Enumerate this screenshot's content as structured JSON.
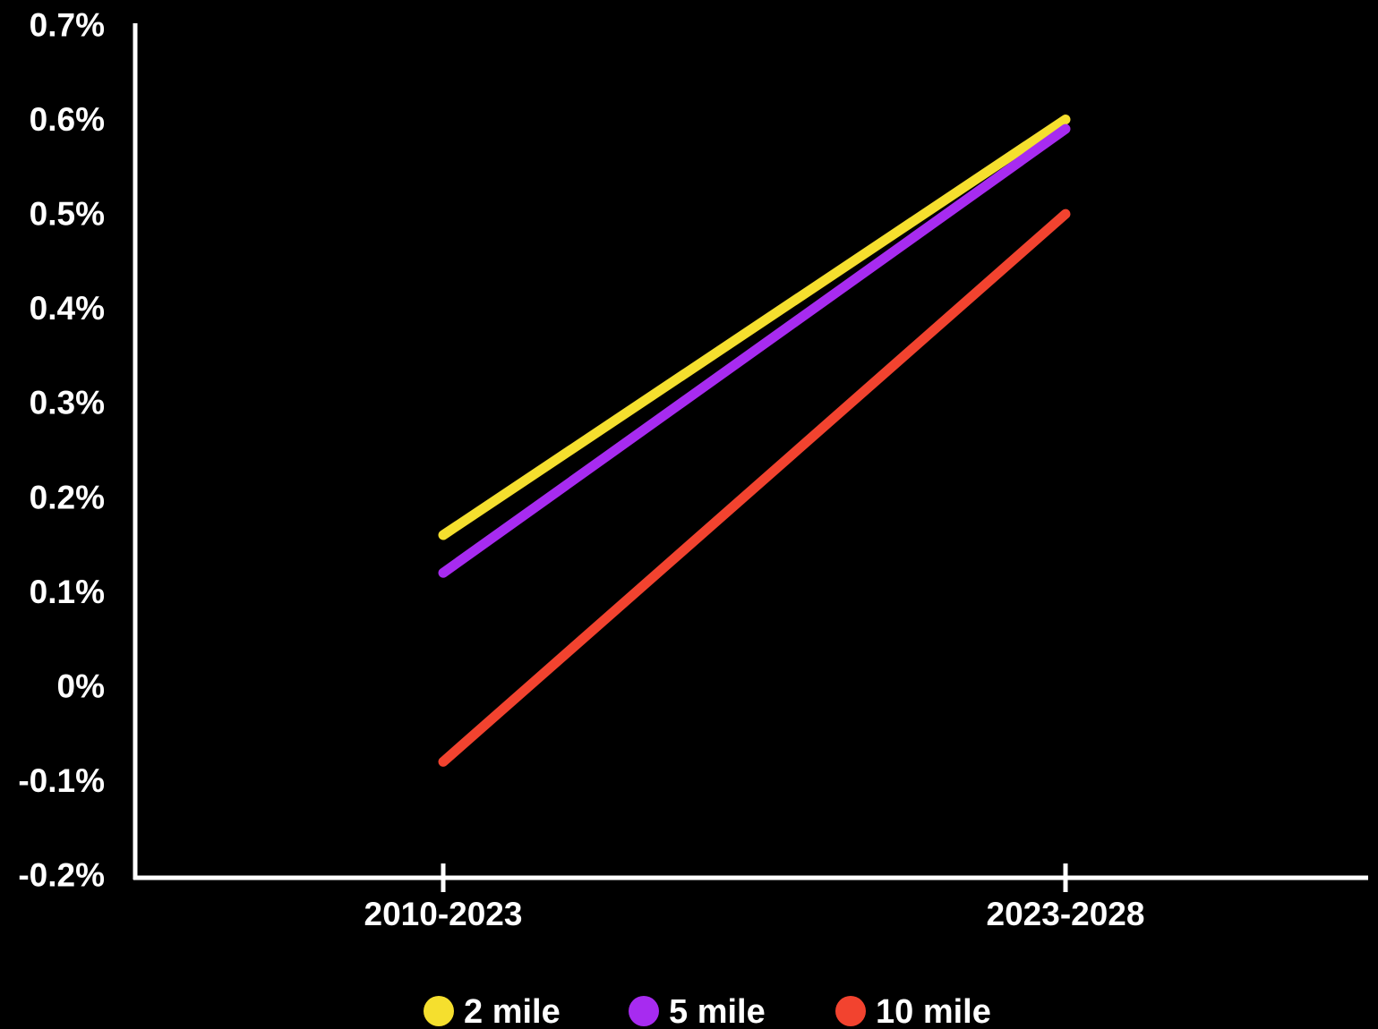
{
  "chart_data": {
    "type": "line",
    "categories": [
      "2010-2023",
      "2023-2028"
    ],
    "series": [
      {
        "name": "2 mile",
        "color": "#F5DF2E",
        "values": [
          0.16,
          0.6
        ]
      },
      {
        "name": "5 mile",
        "color": "#A72BF0",
        "values": [
          0.12,
          0.59
        ]
      },
      {
        "name": "10 mile",
        "color": "#F2432F",
        "values": [
          -0.08,
          0.5
        ]
      }
    ],
    "ylim": [
      -0.2,
      0.7
    ],
    "yticks": [
      -0.2,
      -0.1,
      0,
      0.1,
      0.2,
      0.3,
      0.4,
      0.5,
      0.6,
      0.7
    ],
    "ytick_labels": [
      "-0.2%",
      "-0.1%",
      "0%",
      "0.1%",
      "0.2%",
      "0.3%",
      "0.4%",
      "0.5%",
      "0.6%",
      "0.7%"
    ],
    "axis_color": "#FFFFFF",
    "grid": false,
    "legend_position": "bottom-center",
    "title": "",
    "xlabel": "",
    "ylabel": ""
  }
}
